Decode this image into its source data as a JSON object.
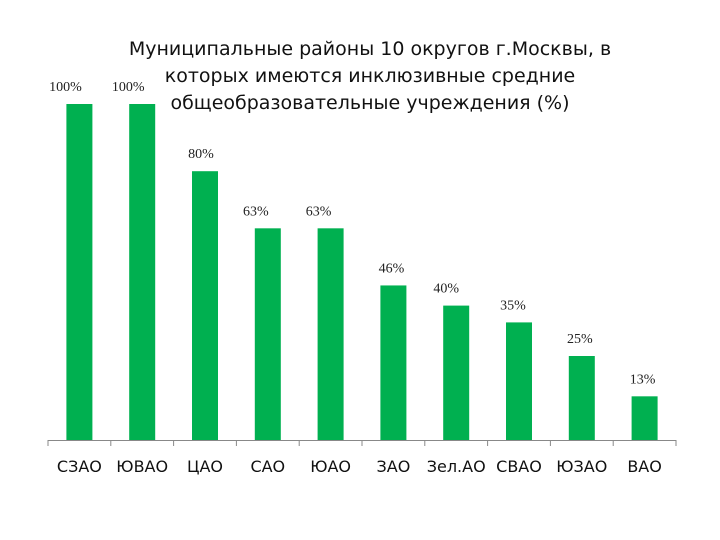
{
  "chart_data": {
    "type": "bar",
    "title": "Муниципальные районы 10 округов г.Москвы, в которых имеются инклюзивные средние общеобразовательные учреждения (%)",
    "categories": [
      "СЗАО",
      "ЮВАО",
      "ЦАО",
      "САО",
      "ЮАО",
      "ЗАО",
      "Зел.АО",
      "СВАО",
      "ЮЗАО",
      "ВАО"
    ],
    "values": [
      100,
      100,
      80,
      63,
      63,
      46,
      40,
      35,
      25,
      13
    ],
    "data_labels": [
      "100%",
      "100%",
      "80%",
      "63%",
      "63%",
      "46%",
      "40%",
      "35%",
      "25%",
      "13%"
    ],
    "ylim": [
      0,
      100
    ],
    "grid": false,
    "legend": "none",
    "xlabel": "",
    "ylabel": "",
    "colors": {
      "bar": "#00b050",
      "axis": "#888888"
    }
  }
}
